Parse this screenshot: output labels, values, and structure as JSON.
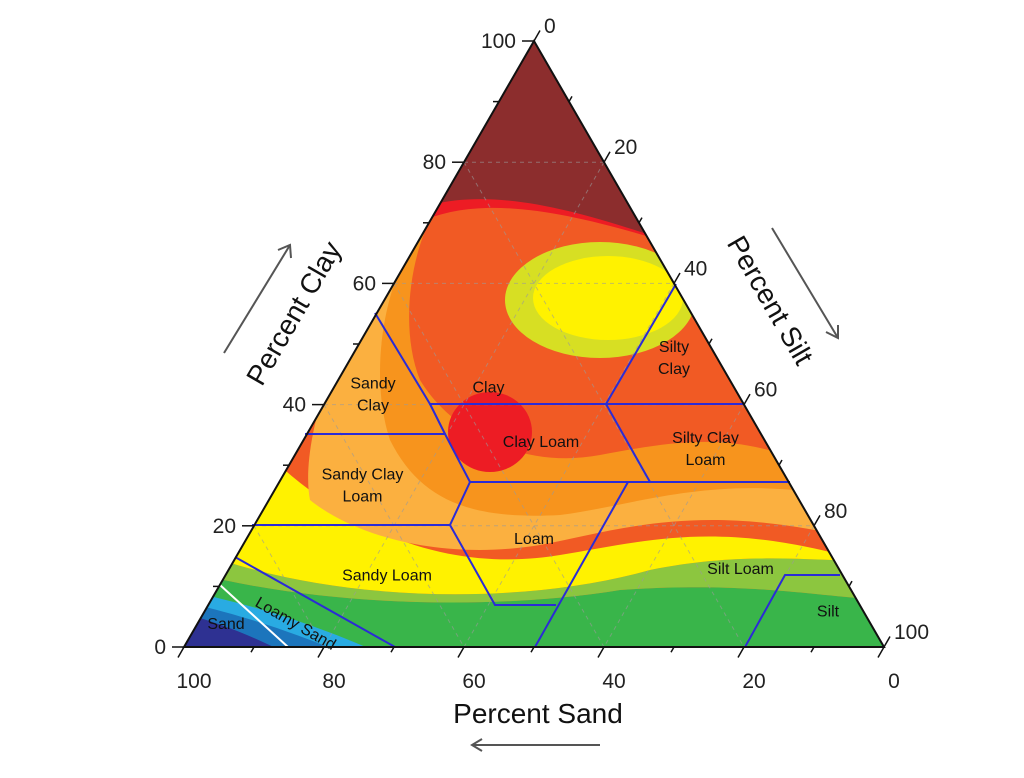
{
  "chart_data": {
    "type": "ternary-contour",
    "axes": {
      "clay": {
        "title": "Percent Clay",
        "ticks": [
          0,
          20,
          40,
          60,
          80,
          100
        ]
      },
      "silt": {
        "title": "Percent Silt",
        "ticks": [
          0,
          20,
          40,
          60,
          80,
          100
        ]
      },
      "sand": {
        "title": "Percent Sand",
        "ticks": [
          100,
          80,
          60,
          40,
          20,
          0
        ]
      }
    },
    "gridlines": "dashed",
    "contour_colors": [
      "#2e3192",
      "#1c75bc",
      "#29abe2",
      "#39b54a",
      "#8cc63f",
      "#d7df23",
      "#fff200",
      "#fbb040",
      "#f7941d",
      "#f15a24",
      "#ed1c24",
      "#8c2d2d"
    ],
    "boundary_color": "#2b2bd6",
    "regions": [
      {
        "name": "Clay",
        "label": "Clay",
        "sand": 35,
        "silt": 22
      },
      {
        "name": "Silty Clay",
        "label": "Silty\nClay",
        "sand": 6,
        "silt": 46
      },
      {
        "name": "Sandy Clay",
        "label": "Sandy\nClay",
        "sand": 52,
        "silt": 6
      },
      {
        "name": "Silty Clay Loam",
        "label": "Silty Clay\nLoam",
        "sand": 9,
        "silt": 58
      },
      {
        "name": "Clay Loam",
        "label": "Clay Loam",
        "sand": 32,
        "silt": 34
      },
      {
        "name": "Sandy Clay Loam",
        "label": "Sandy Clay\nLoam",
        "sand": 61,
        "silt": 12
      },
      {
        "name": "Loam",
        "label": "Loam",
        "sand": 41,
        "silt": 41
      },
      {
        "name": "Sandy Loam",
        "label": "Sandy Loam",
        "sand": 65,
        "silt": 23
      },
      {
        "name": "Silt Loam",
        "label": "Silt Loam",
        "sand": 14,
        "silt": 73
      },
      {
        "name": "Loamy Sand",
        "label": "Loamy Sand",
        "sand": 82,
        "silt": 14
      },
      {
        "name": "Sand",
        "label": "Sand",
        "sand": 92,
        "silt": 4
      },
      {
        "name": "Silt",
        "label": "Silt",
        "sand": 5,
        "silt": 89
      }
    ]
  }
}
